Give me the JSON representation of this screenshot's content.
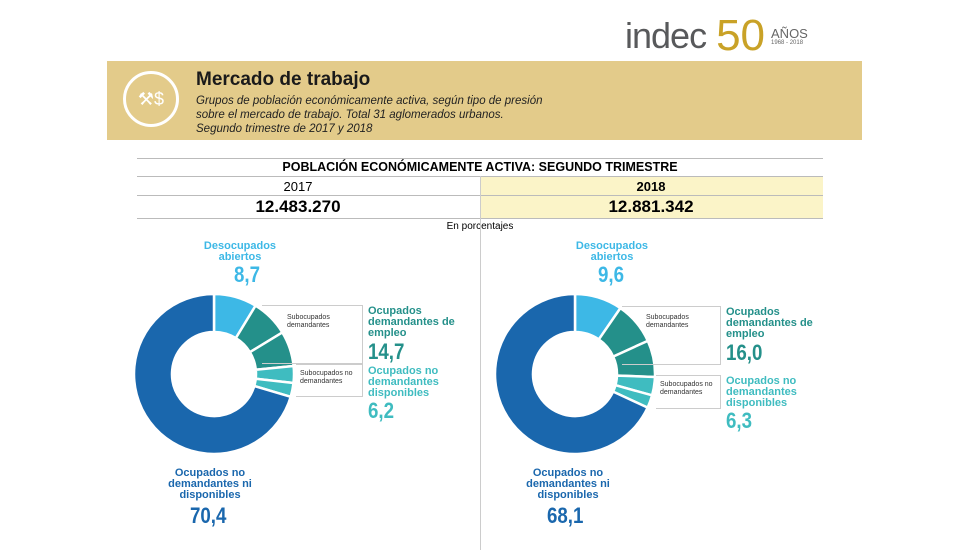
{
  "logo": {
    "brand": "indec",
    "anniversary": "50",
    "anos": "AÑOS",
    "years": "1968 - 2018"
  },
  "header": {
    "title": "Mercado de trabajo",
    "subtitle_lines": [
      "Grupos de población económicamente activa, según tipo de presión",
      "sobre el mercado de trabajo. Total 31 aglomerados urbanos.",
      "Segundo trimestre de 2017 y 2018"
    ],
    "icon": "worker-money-icon"
  },
  "table": {
    "title": "POBLACIÓN ECONÓMICAMENTE ACTIVA: SEGUNDO TRIMESTRE",
    "years": [
      "2017",
      "2018"
    ],
    "values": [
      "12.483.270",
      "12.881.342"
    ],
    "unit_note": "En porcentajes"
  },
  "colors": {
    "dark_blue": "#1a67ad",
    "light_blue": "#3db8e6",
    "teal": "#24908a",
    "light_teal": "#3fbcc0",
    "band": "#e3cb8a"
  },
  "labels": {
    "desocupados": "Desocupados abiertos",
    "ocupados_dem": "Ocupados demandantes de empleo",
    "ocupados_nodem_disp": "Ocupados no demandantes disponibles",
    "ocupados_nodem_nodisp": "Ocupados no demandantes ni disponibles",
    "sub_dem": "Subocupados demandantes",
    "sub_nodem": "Subocupados no demandantes"
  },
  "chart_data": [
    {
      "type": "pie",
      "title": "2017",
      "unit": "%",
      "categories": [
        "Desocupados abiertos",
        "Subocupados demandantes",
        "Ocupados demandantes de empleo (no subocupados)",
        "Subocupados no demandantes",
        "Ocupados no demandantes disponibles (no subocupados)",
        "Ocupados no demandantes ni disponibles"
      ],
      "values": [
        8.7,
        7.6,
        7.1,
        3.4,
        2.8,
        70.4
      ],
      "printed": {
        "desocupados": "8,7",
        "ocupados_dem": "14,7",
        "ocupados_nodem_disp": "6,2",
        "ocupados_nodem_nodisp": "70,4"
      }
    },
    {
      "type": "pie",
      "title": "2018",
      "unit": "%",
      "categories": [
        "Desocupados abiertos",
        "Subocupados demandantes",
        "Ocupados demandantes de empleo (no subocupados)",
        "Subocupados no demandantes",
        "Ocupados no demandantes disponibles (no subocupados)",
        "Ocupados no demandantes ni disponibles"
      ],
      "values": [
        9.6,
        8.6,
        7.4,
        3.7,
        2.6,
        68.1
      ],
      "printed": {
        "desocupados": "9,6",
        "ocupados_dem": "16,0",
        "ocupados_nodem_disp": "6,3",
        "ocupados_nodem_nodisp": "68,1"
      }
    }
  ]
}
